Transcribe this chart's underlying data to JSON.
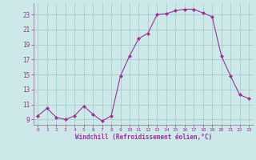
{
  "x": [
    0,
    1,
    2,
    3,
    4,
    5,
    6,
    7,
    8,
    9,
    10,
    11,
    12,
    13,
    14,
    15,
    16,
    17,
    18,
    19,
    20,
    21,
    22,
    23
  ],
  "y": [
    9.5,
    10.5,
    9.3,
    9.0,
    9.5,
    10.8,
    9.7,
    8.8,
    9.5,
    14.8,
    17.5,
    19.8,
    20.5,
    23.0,
    23.1,
    23.5,
    23.7,
    23.7,
    23.2,
    22.7,
    17.5,
    14.8,
    12.3,
    11.8
  ],
  "line_color": "#993399",
  "marker": "D",
  "marker_size": 2,
  "bg_color": "#cce8e8",
  "grid_color": "#aacccc",
  "xlabel": "Windchill (Refroidissement éolien,°C)",
  "tick_color": "#993399",
  "xlim": [
    -0.5,
    23.5
  ],
  "ylim": [
    8.3,
    24.5
  ],
  "yticks": [
    9,
    11,
    13,
    15,
    17,
    19,
    21,
    23
  ],
  "xticks": [
    0,
    1,
    2,
    3,
    4,
    5,
    6,
    7,
    8,
    9,
    10,
    11,
    12,
    13,
    14,
    15,
    16,
    17,
    18,
    19,
    20,
    21,
    22,
    23
  ]
}
